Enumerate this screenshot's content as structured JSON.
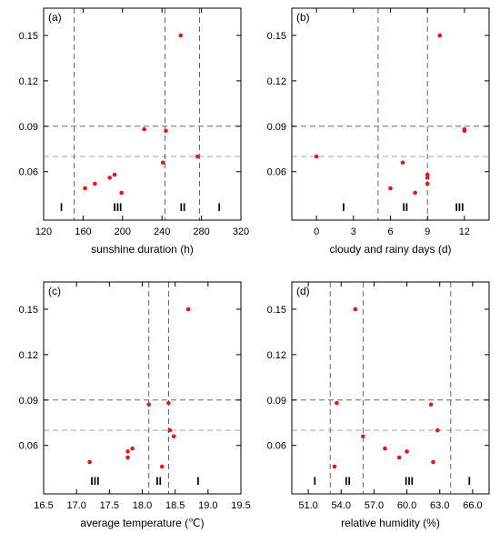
{
  "chart_data": [
    {
      "type": "scatter",
      "panel": "(a)",
      "xlabel": "sunshine duration (h)",
      "ylabel": "",
      "xlim": [
        120,
        320
      ],
      "ylim": [
        0.028,
        0.168
      ],
      "xticks": [
        120,
        160,
        200,
        240,
        280,
        320
      ],
      "xtick_labels": [
        "120",
        "160",
        "200",
        "240",
        "280",
        "320"
      ],
      "yticks": [
        0.06,
        0.09,
        0.12,
        0.15
      ],
      "ytick_labels": [
        "0.06",
        "0.09",
        "0.12",
        "0.15"
      ],
      "hlines": [
        0.09,
        0.07
      ],
      "vlines": [
        151,
        243,
        278
      ],
      "zones": [
        {
          "label": "I",
          "x": 138
        },
        {
          "label": "III",
          "x": 195
        },
        {
          "label": "II",
          "x": 261
        },
        {
          "label": "I",
          "x": 298
        }
      ],
      "points": [
        {
          "x": 162,
          "y": 0.049
        },
        {
          "x": 172,
          "y": 0.052
        },
        {
          "x": 187,
          "y": 0.056
        },
        {
          "x": 192,
          "y": 0.058
        },
        {
          "x": 199,
          "y": 0.046
        },
        {
          "x": 222,
          "y": 0.088
        },
        {
          "x": 241,
          "y": 0.066
        },
        {
          "x": 244,
          "y": 0.087
        },
        {
          "x": 259,
          "y": 0.15
        },
        {
          "x": 276,
          "y": 0.07
        }
      ]
    },
    {
      "type": "scatter",
      "panel": "(b)",
      "xlabel": "cloudy and rainy days (d)",
      "ylabel": "",
      "xlim": [
        -2,
        14
      ],
      "ylim": [
        0.028,
        0.168
      ],
      "xticks": [
        0,
        3,
        6,
        9,
        12
      ],
      "xtick_labels": [
        "0",
        "3",
        "6",
        "9",
        "12"
      ],
      "yticks": [
        0.06,
        0.09,
        0.12,
        0.15
      ],
      "ytick_labels": [
        "0.06",
        "0.09",
        "0.12",
        "0.15"
      ],
      "hlines": [
        0.09,
        0.07
      ],
      "vlines": [
        5,
        9
      ],
      "zones": [
        {
          "label": "I",
          "x": 2.2
        },
        {
          "label": "II",
          "x": 7.2
        },
        {
          "label": "III",
          "x": 11.6
        }
      ],
      "points": [
        {
          "x": 0,
          "y": 0.07
        },
        {
          "x": 6,
          "y": 0.049
        },
        {
          "x": 7,
          "y": 0.066
        },
        {
          "x": 8,
          "y": 0.046
        },
        {
          "x": 9,
          "y": 0.052
        },
        {
          "x": 9,
          "y": 0.056
        },
        {
          "x": 9,
          "y": 0.058
        },
        {
          "x": 10,
          "y": 0.15
        },
        {
          "x": 12,
          "y": 0.087
        },
        {
          "x": 12,
          "y": 0.088
        }
      ]
    },
    {
      "type": "scatter",
      "panel": "(c)",
      "xlabel": "average temperature (℃)",
      "ylabel": "",
      "xlim": [
        16.5,
        19.5
      ],
      "ylim": [
        0.028,
        0.168
      ],
      "xticks": [
        16.5,
        17.0,
        17.5,
        18.0,
        18.5,
        19.0,
        19.5
      ],
      "xtick_labels": [
        "16.5",
        "17.0",
        "17.5",
        "18.0",
        "18.5",
        "19.0",
        "19.5"
      ],
      "yticks": [
        0.06,
        0.09,
        0.12,
        0.15
      ],
      "ytick_labels": [
        "0.06",
        "0.09",
        "0.12",
        "0.15"
      ],
      "hlines": [
        0.09,
        0.07
      ],
      "vlines": [
        18.1,
        18.4
      ],
      "zones": [
        {
          "label": "III",
          "x": 17.28
        },
        {
          "label": "II",
          "x": 18.25
        },
        {
          "label": "I",
          "x": 18.85
        }
      ],
      "points": [
        {
          "x": 17.2,
          "y": 0.049
        },
        {
          "x": 17.78,
          "y": 0.052
        },
        {
          "x": 17.78,
          "y": 0.056
        },
        {
          "x": 17.85,
          "y": 0.058
        },
        {
          "x": 18.1,
          "y": 0.087
        },
        {
          "x": 18.3,
          "y": 0.046
        },
        {
          "x": 18.4,
          "y": 0.088
        },
        {
          "x": 18.42,
          "y": 0.07
        },
        {
          "x": 18.48,
          "y": 0.066
        },
        {
          "x": 18.7,
          "y": 0.15
        }
      ]
    },
    {
      "type": "scatter",
      "panel": "(d)",
      "xlabel": "relative humidity (%)",
      "ylabel": "",
      "xlim": [
        49.5,
        67.5
      ],
      "ylim": [
        0.028,
        0.168
      ],
      "xticks": [
        51,
        54,
        57,
        60,
        63,
        66
      ],
      "xtick_labels": [
        "51.0",
        "54.0",
        "57.0",
        "60.0",
        "63.0",
        "66.0"
      ],
      "yticks": [
        0.06,
        0.09,
        0.12,
        0.15
      ],
      "ytick_labels": [
        "0.06",
        "0.09",
        "0.12",
        "0.15"
      ],
      "hlines": [
        0.09,
        0.07
      ],
      "vlines": [
        53,
        56,
        64
      ],
      "zones": [
        {
          "label": "I",
          "x": 51.6
        },
        {
          "label": "II",
          "x": 54.6
        },
        {
          "label": "III",
          "x": 60.2
        },
        {
          "label": "I",
          "x": 65.7
        }
      ],
      "points": [
        {
          "x": 53.4,
          "y": 0.046
        },
        {
          "x": 53.6,
          "y": 0.088
        },
        {
          "x": 55.3,
          "y": 0.15
        },
        {
          "x": 56.0,
          "y": 0.066
        },
        {
          "x": 58.0,
          "y": 0.058
        },
        {
          "x": 59.3,
          "y": 0.052
        },
        {
          "x": 60.0,
          "y": 0.056
        },
        {
          "x": 62.2,
          "y": 0.087
        },
        {
          "x": 62.4,
          "y": 0.049
        },
        {
          "x": 62.8,
          "y": 0.07
        }
      ]
    }
  ],
  "colors": {
    "points": "#e8161b",
    "frame": "#000000",
    "dark_dash": "#555555",
    "light_dash": "#999999"
  }
}
